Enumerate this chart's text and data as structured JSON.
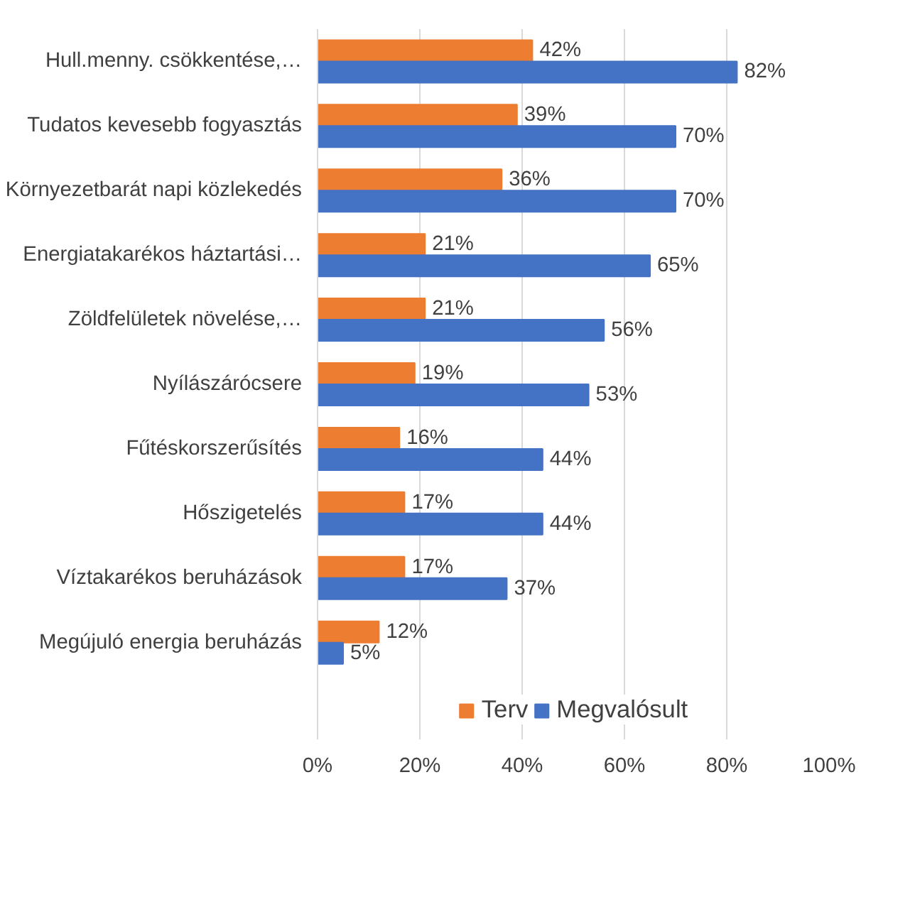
{
  "chart_data": {
    "type": "bar",
    "orientation": "horizontal",
    "categories": [
      "Hull.menny. csökkentése,…",
      "Tudatos kevesebb fogyasztás",
      "Környezetbarát napi közlekedés",
      "Energiatakarékos háztartási…",
      "Zöldfelületek növelése,…",
      "Nyílászárócsere",
      "Fűtéskorszerűsítés",
      "Hőszigetelés",
      "Víztakarékos beruházások",
      "Megújuló energia beruházás"
    ],
    "series": [
      {
        "name": "Terv",
        "color": "#ed7d31",
        "values": [
          42,
          39,
          36,
          21,
          21,
          19,
          16,
          17,
          17,
          12
        ],
        "value_labels": [
          "42%",
          "39%",
          "36%",
          "21%",
          "21%",
          "19%",
          "16%",
          "17%",
          "17%",
          "12%"
        ]
      },
      {
        "name": "Megvalósult",
        "color": "#4472c4",
        "values": [
          82,
          70,
          70,
          65,
          56,
          53,
          44,
          44,
          37,
          5
        ],
        "value_labels": [
          "82%",
          "70%",
          "70%",
          "65%",
          "56%",
          "53%",
          "44%",
          "44%",
          "37%",
          "5%"
        ]
      }
    ],
    "xlim": [
      0,
      100
    ],
    "xticks": [
      {
        "value": 0,
        "label": "0%"
      },
      {
        "value": 20,
        "label": "20%"
      },
      {
        "value": 40,
        "label": "40%"
      },
      {
        "value": 60,
        "label": "60%"
      },
      {
        "value": 80,
        "label": "80%"
      },
      {
        "value": 100,
        "label": "100%"
      }
    ],
    "grid": "x",
    "legend": "bottom"
  }
}
